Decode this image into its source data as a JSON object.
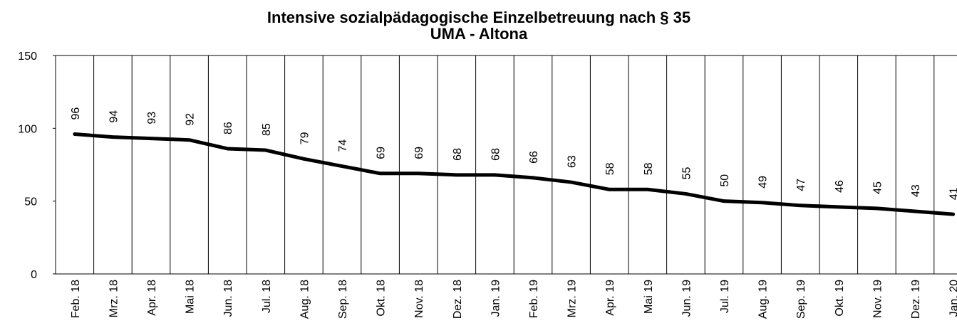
{
  "chart_data": {
    "type": "line",
    "title": "Intensive sozialpädagogische Einzelbetreuung nach § 35",
    "subtitle": "UMA - Altona",
    "categories": [
      "Feb. 18",
      "Mrz. 18",
      "Apr. 18",
      "Mai 18",
      "Jun. 18",
      "Jul. 18",
      "Aug. 18",
      "Sep. 18",
      "Okt. 18",
      "Nov. 18",
      "Dez. 18",
      "Jan. 19",
      "Feb. 19",
      "Mrz. 19",
      "Apr. 19",
      "Mai 19",
      "Jun. 19",
      "Jul. 19",
      "Aug. 19",
      "Sep. 19",
      "Okt. 19",
      "Nov. 19",
      "Dez. 19",
      "Jan. 20"
    ],
    "values": [
      96,
      94,
      93,
      92,
      86,
      85,
      79,
      74,
      69,
      69,
      68,
      68,
      66,
      63,
      58,
      58,
      55,
      50,
      49,
      47,
      46,
      45,
      43,
      41
    ],
    "color": "#000000",
    "ylim": [
      0,
      150
    ],
    "yticks": [
      0,
      50,
      100,
      150
    ]
  }
}
